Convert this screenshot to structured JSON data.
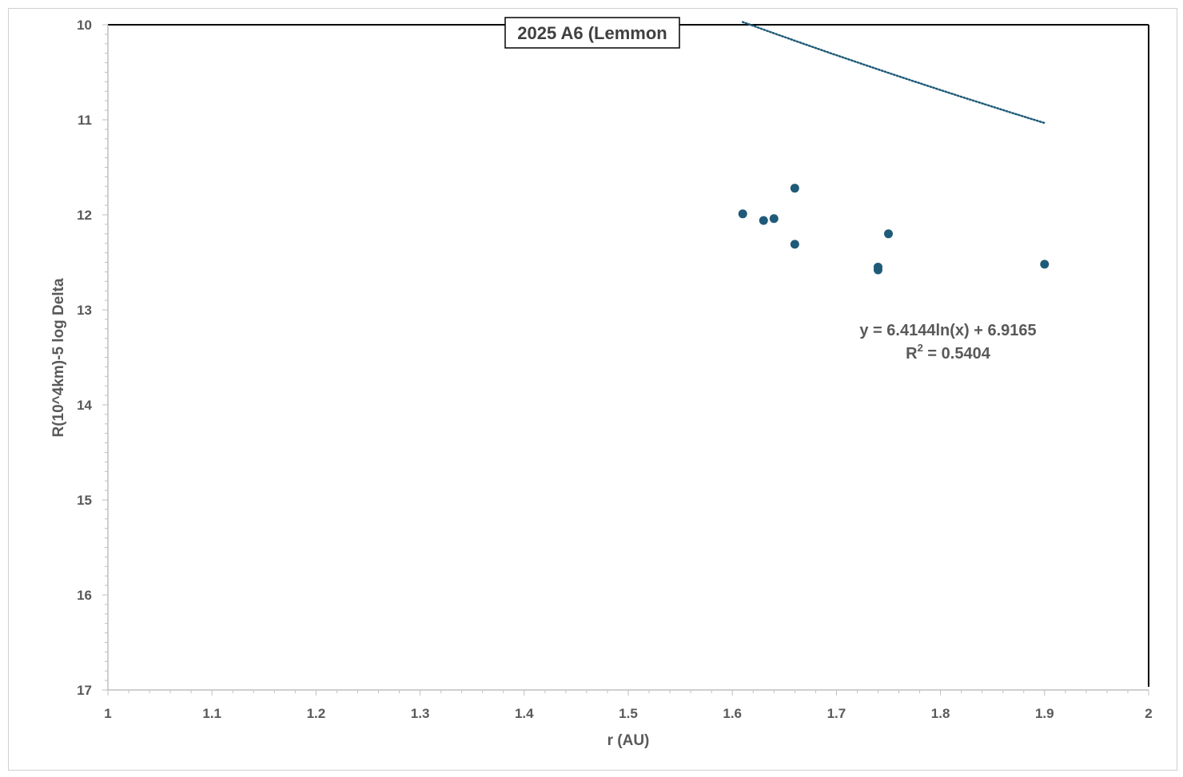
{
  "chart_data": {
    "type": "scatter",
    "title": "2025 A6 (Lemmon",
    "xlabel": "r (AU)",
    "ylabel": "R(10^4km)-5 log Delta",
    "xlim": [
      1,
      2
    ],
    "ylim": [
      10,
      17
    ],
    "y_reversed": true,
    "grid": false,
    "x_ticks": [
      "1",
      "1.1",
      "1.2",
      "1.3",
      "1.4",
      "1.5",
      "1.6",
      "1.7",
      "1.8",
      "1.9",
      "2"
    ],
    "y_ticks": [
      "10",
      "11",
      "12",
      "13",
      "14",
      "15",
      "16",
      "17"
    ],
    "series": [
      {
        "color": "#1f5b78",
        "points": [
          {
            "x": 1.61,
            "y": 11.99
          },
          {
            "x": 1.63,
            "y": 12.06
          },
          {
            "x": 1.64,
            "y": 12.04
          },
          {
            "x": 1.66,
            "y": 11.72
          },
          {
            "x": 1.66,
            "y": 12.31
          },
          {
            "x": 1.74,
            "y": 12.55
          },
          {
            "x": 1.74,
            "y": 12.58
          },
          {
            "x": 1.75,
            "y": 12.2
          },
          {
            "x": 1.9,
            "y": 12.52
          }
        ]
      }
    ],
    "trendline": {
      "type": "logarithmic",
      "a": 6.4144,
      "b": 6.9165,
      "x_range": [
        1.61,
        1.9
      ],
      "color": "#1f5b78",
      "equation": "y = 6.4144ln(x) + 6.9165",
      "r2_label": "R",
      "r2_sup": "2",
      "r2_value": " = 0.5404"
    }
  }
}
